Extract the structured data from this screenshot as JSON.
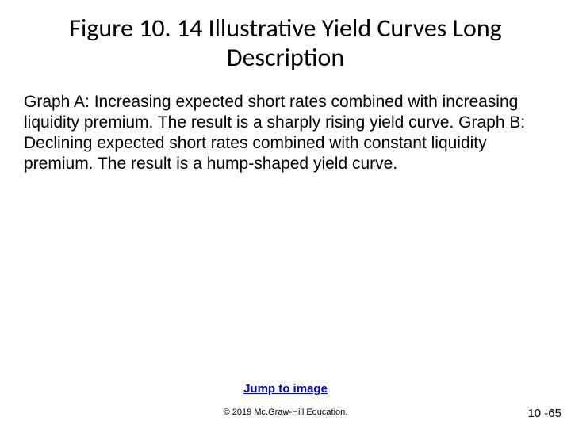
{
  "title": "Figure 10. 14 Illustrative Yield Curves Long Description",
  "body": "Graph A: Increasing expected short rates combined with increasing liquidity premium.  The result is a sharply rising yield curve. Graph B: Declining expected short rates combined with constant liquidity premium. The result is a hump-shaped yield curve.",
  "link_label": "Jump to image",
  "copyright": "© 2019 Mc.Graw-Hill Education.",
  "page_number": "10 -65",
  "colors": {
    "background": "#ffffff",
    "text": "#000000",
    "link": "#0000cc"
  },
  "fonts": {
    "title_family": "Calibri",
    "title_size_pt": 32,
    "body_family": "Arial",
    "body_size_pt": 21,
    "link_size_pt": 15,
    "copyright_size_pt": 11,
    "pagenum_size_pt": 15
  }
}
